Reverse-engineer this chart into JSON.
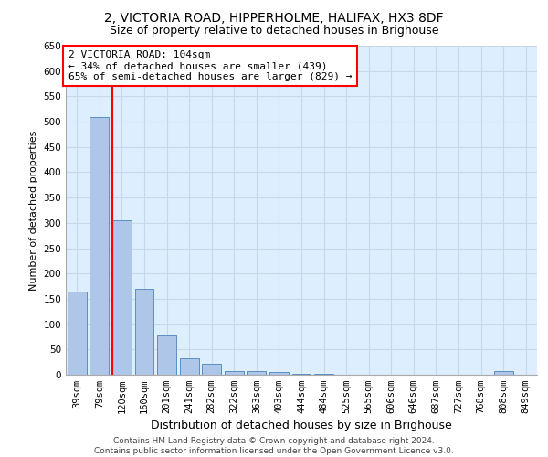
{
  "title1": "2, VICTORIA ROAD, HIPPERHOLME, HALIFAX, HX3 8DF",
  "title2": "Size of property relative to detached houses in Brighouse",
  "xlabel": "Distribution of detached houses by size in Brighouse",
  "ylabel": "Number of detached properties",
  "categories": [
    "39sqm",
    "79sqm",
    "120sqm",
    "160sqm",
    "201sqm",
    "241sqm",
    "282sqm",
    "322sqm",
    "363sqm",
    "403sqm",
    "444sqm",
    "484sqm",
    "525sqm",
    "565sqm",
    "606sqm",
    "646sqm",
    "687sqm",
    "727sqm",
    "768sqm",
    "808sqm",
    "849sqm"
  ],
  "values": [
    165,
    510,
    305,
    170,
    78,
    33,
    22,
    7,
    7,
    5,
    2,
    1,
    0,
    0,
    0,
    0,
    0,
    0,
    0,
    7,
    0
  ],
  "bar_color": "#aec6e8",
  "bar_edge_color": "#5a8fc2",
  "redline_index": 1.575,
  "annotation_text": "2 VICTORIA ROAD: 104sqm\n← 34% of detached houses are smaller (439)\n65% of semi-detached houses are larger (829) →",
  "annotation_box_color": "white",
  "annotation_box_edge_color": "red",
  "redline_color": "red",
  "ylim": [
    0,
    650
  ],
  "yticks": [
    0,
    50,
    100,
    150,
    200,
    250,
    300,
    350,
    400,
    450,
    500,
    550,
    600,
    650
  ],
  "grid_color": "#c8d8e8",
  "background_color": "#ddeeff",
  "footer1": "Contains HM Land Registry data © Crown copyright and database right 2024.",
  "footer2": "Contains public sector information licensed under the Open Government Licence v3.0.",
  "title1_fontsize": 10,
  "title2_fontsize": 9,
  "xlabel_fontsize": 9,
  "ylabel_fontsize": 8,
  "tick_fontsize": 7.5,
  "annotation_fontsize": 8,
  "footer_fontsize": 6.5
}
